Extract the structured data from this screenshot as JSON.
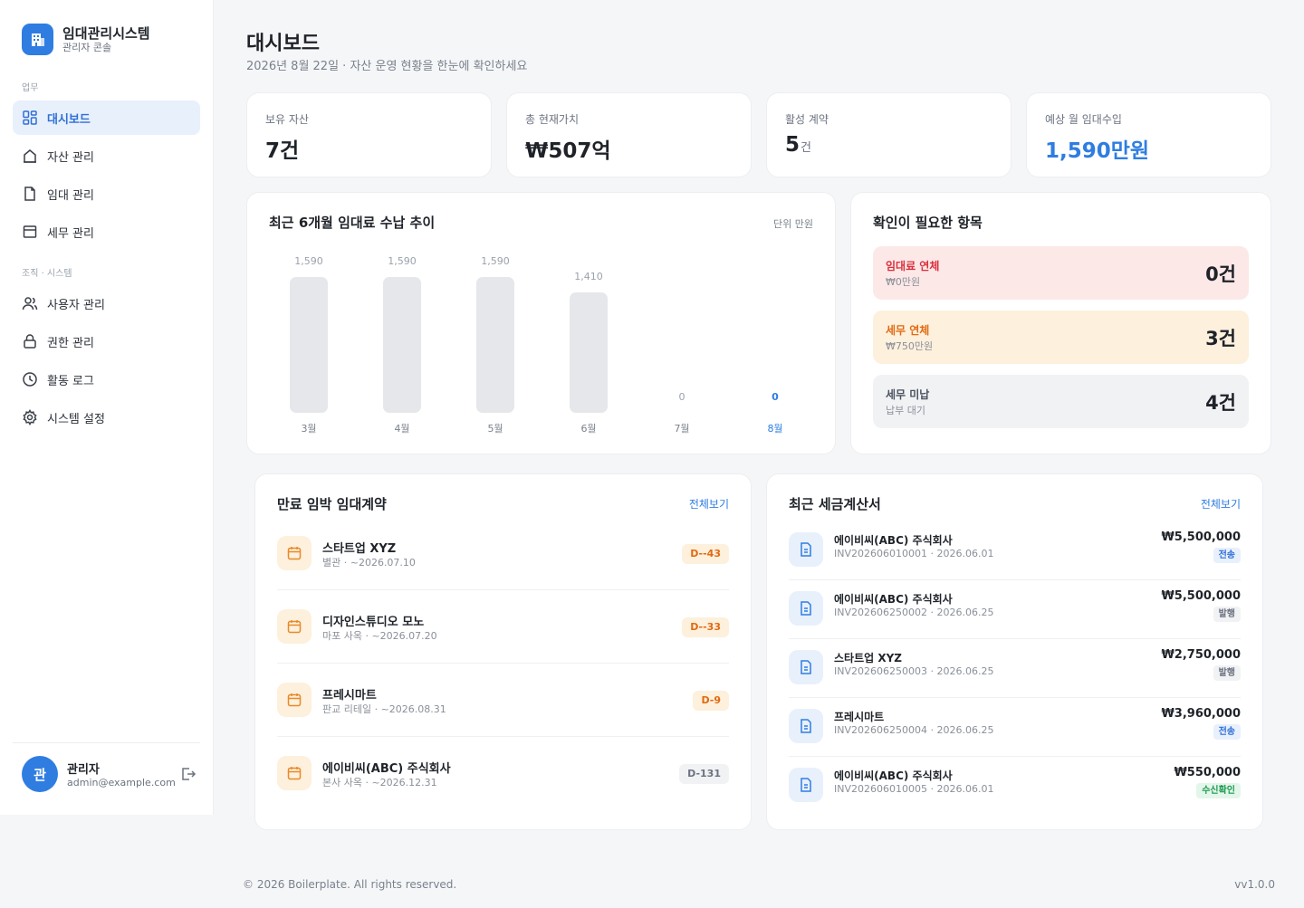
{
  "brand": {
    "title": "임대관리시스템",
    "subtitle": "관리자 콘솔"
  },
  "sidebar": {
    "section_work": "업무",
    "section_org": "조직 · 시스템",
    "items": [
      {
        "label": "대시보드",
        "icon": "dashboard-icon",
        "active": true
      },
      {
        "label": "자산 관리",
        "icon": "home-icon"
      },
      {
        "label": "임대 관리",
        "icon": "document-icon"
      },
      {
        "label": "세무 관리",
        "icon": "ledger-icon"
      },
      {
        "label": "사용자 관리",
        "icon": "users-icon"
      },
      {
        "label": "권한 관리",
        "icon": "lock-icon"
      },
      {
        "label": "활동 로그",
        "icon": "clock-icon"
      },
      {
        "label": "시스템 설정",
        "icon": "gear-icon"
      }
    ]
  },
  "user": {
    "avatar": "관",
    "name": "관리자",
    "email": "admin@example.com"
  },
  "header": {
    "title": "대시보드",
    "subtitle": "2026년 8월 22일 · 자산 운영 현황을 한눈에 확인하세요"
  },
  "stats": [
    {
      "label": "보유 자산",
      "value": "7건",
      "unit": ""
    },
    {
      "label": "총 현재가치",
      "value": "₩507억",
      "unit": ""
    },
    {
      "label": "활성 계약",
      "value": "5",
      "unit": "건"
    },
    {
      "label": "예상 월 임대수입",
      "value": "1,590만원",
      "unit": "",
      "color": "#2f7de1"
    }
  ],
  "chart": {
    "title": "최근 6개월 임대료 수납 추이",
    "unit_label": "단위 만원"
  },
  "chart_data": {
    "type": "bar",
    "title": "최근 6개월 임대료 수납 추이",
    "categories": [
      "3월",
      "4월",
      "5월",
      "6월",
      "7월",
      "8월"
    ],
    "values": [
      1590,
      1590,
      1590,
      1410,
      0,
      0
    ],
    "value_labels": [
      "1,590",
      "1,590",
      "1,590",
      "1,410",
      "0",
      "0"
    ],
    "ylim": [
      0,
      1590
    ],
    "highlight_index": 5,
    "bar_color": "#e5e7ea",
    "highlight_color": "#2f7de1",
    "grid": false
  },
  "attention": {
    "title": "확인이 필요한 항목",
    "items": [
      {
        "title": "임대료 연체",
        "sub": "₩0만원",
        "count": "0건",
        "tone": "red"
      },
      {
        "title": "세무 연체",
        "sub": "₩750만원",
        "count": "3건",
        "tone": "orange"
      },
      {
        "title": "세무 미납",
        "sub": "납부 대기",
        "count": "4건",
        "tone": "gray"
      }
    ]
  },
  "leases": {
    "title": "만료 임박 임대계약",
    "link": "전체보기",
    "items": [
      {
        "name": "스타트업 XYZ",
        "sub": "별관 · ~2026.07.10",
        "dday": "D--43",
        "tone": "warn"
      },
      {
        "name": "디자인스튜디오 모노",
        "sub": "마포 사옥 · ~2026.07.20",
        "dday": "D--33",
        "tone": "warn"
      },
      {
        "name": "프레시마트",
        "sub": "판교 리테일 · ~2026.08.31",
        "dday": "D-9",
        "tone": "warn"
      },
      {
        "name": "에이비씨(ABC) 주식회사",
        "sub": "본사 사옥 · ~2026.12.31",
        "dday": "D-131",
        "tone": "muted"
      }
    ]
  },
  "invoices": {
    "title": "최근 세금계산서",
    "link": "전체보기",
    "items": [
      {
        "name": "에이비씨(ABC) 주식회사",
        "sub": "INV202606010001 · 2026.06.01",
        "amount": "₩5,500,000",
        "status": "전송",
        "tone": "blue"
      },
      {
        "name": "에이비씨(ABC) 주식회사",
        "sub": "INV202606250002 · 2026.06.25",
        "amount": "₩5,500,000",
        "status": "발행",
        "tone": "gray"
      },
      {
        "name": "스타트업 XYZ",
        "sub": "INV202606250003 · 2026.06.25",
        "amount": "₩2,750,000",
        "status": "발행",
        "tone": "gray"
      },
      {
        "name": "프레시마트",
        "sub": "INV202606250004 · 2026.06.25",
        "amount": "₩3,960,000",
        "status": "전송",
        "tone": "blue"
      },
      {
        "name": "에이비씨(ABC) 주식회사",
        "sub": "INV202606010005 · 2026.06.01",
        "amount": "₩550,000",
        "status": "수신확인",
        "tone": "green"
      }
    ]
  },
  "footer": {
    "copyright": "© 2026 Boilerplate. All rights reserved.",
    "version": "vv1.0.0"
  }
}
